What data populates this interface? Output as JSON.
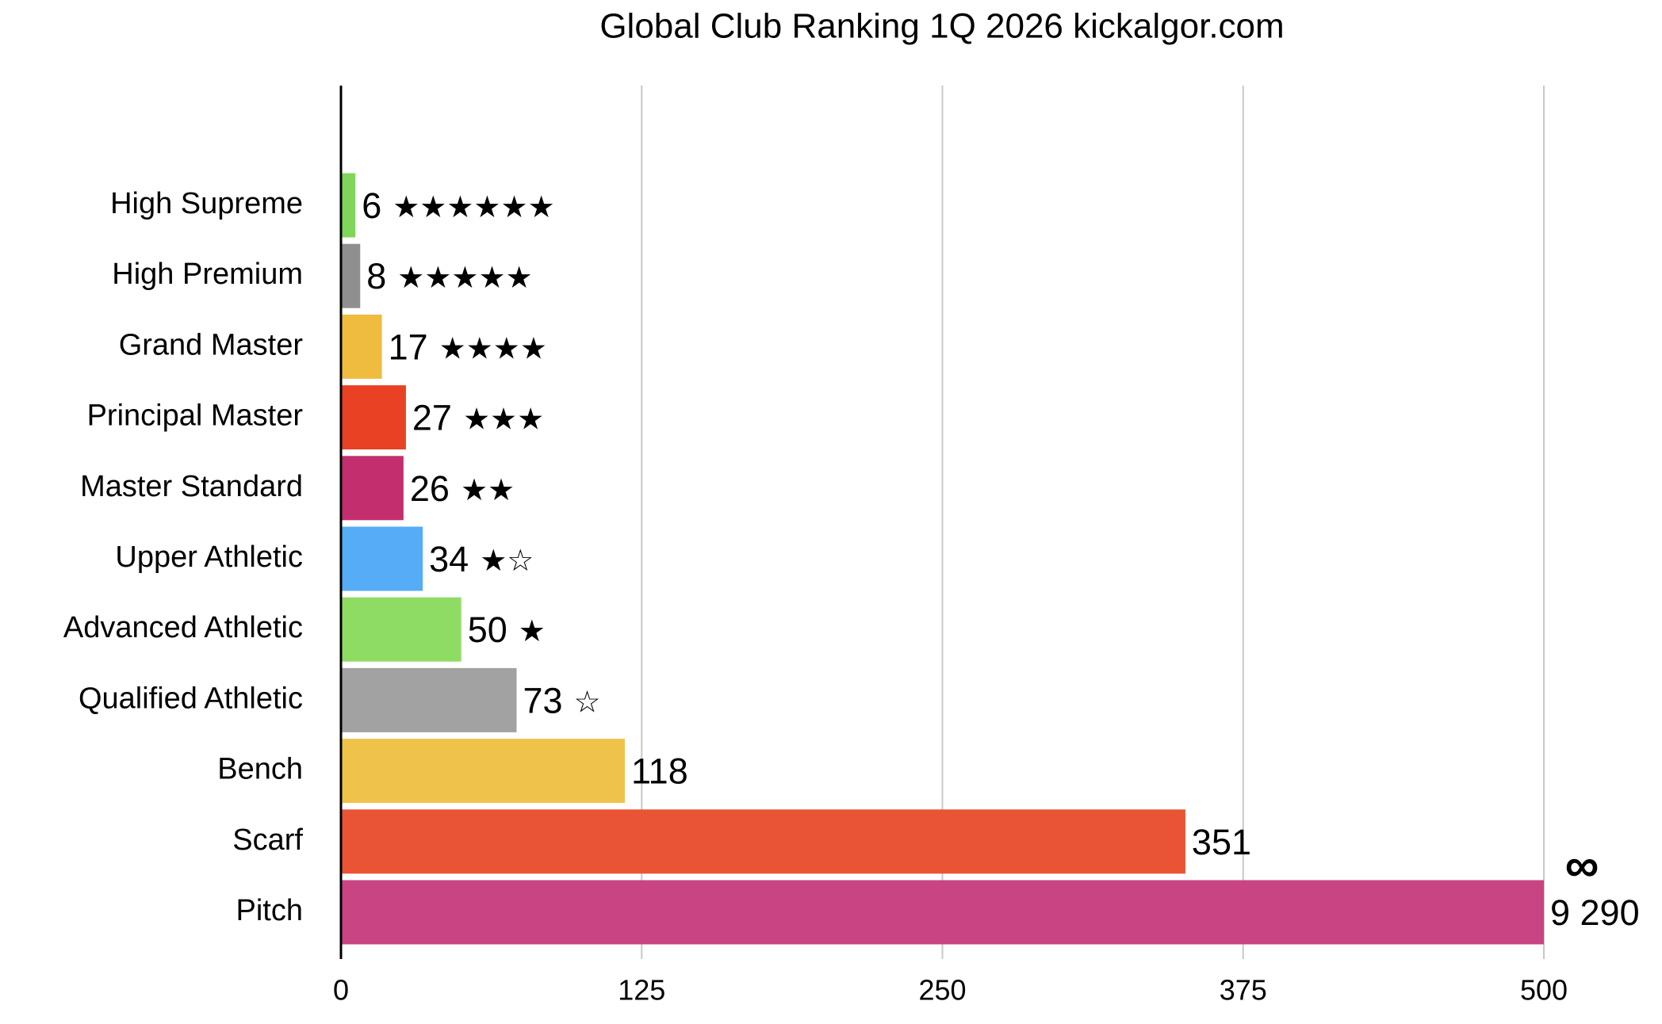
{
  "chart_data": {
    "type": "hbar",
    "title": "Global Club Ranking 1Q 2026 kickalgor.com",
    "categories": [
      "High Supreme",
      "High Premium",
      "Grand Master",
      "Principal Master",
      "Master Standard",
      "Upper Athletic",
      "Advanced Athletic",
      "Qualified Athletic",
      "Bench",
      "Scarf",
      "Pitch"
    ],
    "values": [
      6,
      8,
      17,
      27,
      26,
      34,
      50,
      73,
      118,
      351,
      9290
    ],
    "value_labels": [
      "6",
      "8",
      "17",
      "27",
      "26",
      "34",
      "50",
      "73",
      "118",
      "351",
      "9 290"
    ],
    "star_ratings": [
      "★★★★★★",
      "★★★★★",
      "★★★★",
      "★★★",
      "★★",
      "★☆",
      "★",
      "☆"
    ],
    "overflow_annotation": "∞",
    "colors": [
      "#7fd65a",
      "#8f8f8f",
      "#efbc40",
      "#e84124",
      "#c32e6e",
      "#55acf7",
      "#8edc63",
      "#a2a2a2",
      "#efc34a",
      "#e95435",
      "#c84483"
    ],
    "xlim": [
      0,
      500
    ],
    "xticks": [
      0,
      125,
      250,
      375,
      500
    ],
    "grid": true
  }
}
